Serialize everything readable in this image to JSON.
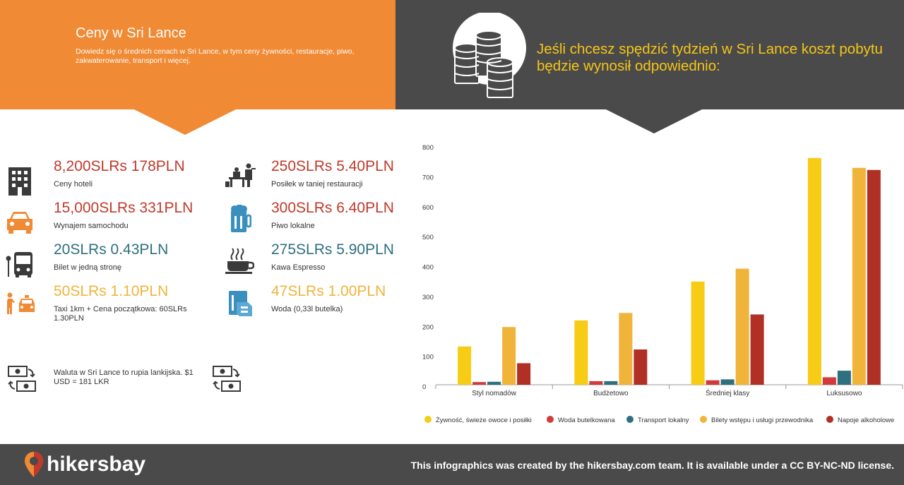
{
  "header": {
    "title": "Ceny w Sri Lance",
    "subtitle": "Dowiedz się o średnich cenach w Sri Lance, w tym ceny żywności, restauracje, piwo, zakwaterowanie, transport i więcej.",
    "right_text": "Jeśli chcesz spędzić tydzień w Sri Lance koszt pobytu będzie wynosił odpowiednio:"
  },
  "colors": {
    "orange": "#f08a34",
    "dark": "#4a4a4a",
    "red": "#c0392b",
    "teal": "#2e6f80",
    "yellow": "#f0b43a"
  },
  "prices": [
    {
      "price": "8,200SLRs 178PLN",
      "label": "Ceny hoteli",
      "icon": "hotel-icon",
      "color": "#c0392b"
    },
    {
      "price": "15,000SLRs 331PLN",
      "label": "Wynajem samochodu",
      "icon": "car-icon",
      "color": "#c0392b"
    },
    {
      "price": "20SLRs 0.43PLN",
      "label": "Bilet w jedną stronę",
      "icon": "bus-icon",
      "color": "#2e6f80"
    },
    {
      "price": "50SLRs 1.10PLN",
      "label": "Taxi 1km + Cena początkowa: 60SLRs 1.30PLN",
      "icon": "taxi-icon",
      "color": "#f0b43a"
    },
    {
      "price": "250SLRs 5.40PLN",
      "label": "Posiłek w taniej restauracji",
      "icon": "restaurant-icon",
      "color": "#c0392b"
    },
    {
      "price": "300SLRs 6.40PLN",
      "label": "Piwo lokalne",
      "icon": "beer-icon",
      "color": "#c0392b"
    },
    {
      "price": "275SLRs 5.90PLN",
      "label": "Kawa Espresso",
      "icon": "coffee-icon",
      "color": "#2e6f80"
    },
    {
      "price": "47SLRs 1.00PLN",
      "label": "Woda (0,33l butelka)",
      "icon": "water-icon",
      "color": "#f0b43a"
    }
  ],
  "currency_note": "Waluta w Sri Lance to rupia lankijska. $1 USD = 181 LKR",
  "chart_data": {
    "type": "bar",
    "categories": [
      "Styl nomadów",
      "Budżetowo",
      "Średniej klasy",
      "Luksusowo"
    ],
    "series": [
      {
        "name": "Żywność, świeże owoce i posiłki",
        "color": "#f7cc15",
        "values": [
          128,
          215,
          345,
          758
        ]
      },
      {
        "name": "Woda butelkowana",
        "color": "#d13b3b",
        "values": [
          9,
          12,
          15,
          25
        ]
      },
      {
        "name": "Transport lokalny",
        "color": "#2e6f80",
        "values": [
          10,
          12,
          18,
          47
        ]
      },
      {
        "name": "Bilety wstępu i usługi przewodnika",
        "color": "#f0b43a",
        "values": [
          193,
          240,
          388,
          725
        ]
      },
      {
        "name": "Napoje alkoholowe",
        "color": "#b03026",
        "values": [
          72,
          118,
          235,
          718
        ]
      }
    ],
    "yticks": [
      0,
      100,
      200,
      300,
      400,
      500,
      600,
      700,
      800
    ],
    "ylim": [
      0,
      800
    ],
    "grid": false,
    "legend": "bottom"
  },
  "footer": {
    "brand": "hikersbay",
    "note": "This infographics was created by the hikersbay.com team. It is available under a CC BY-NC-ND license."
  }
}
